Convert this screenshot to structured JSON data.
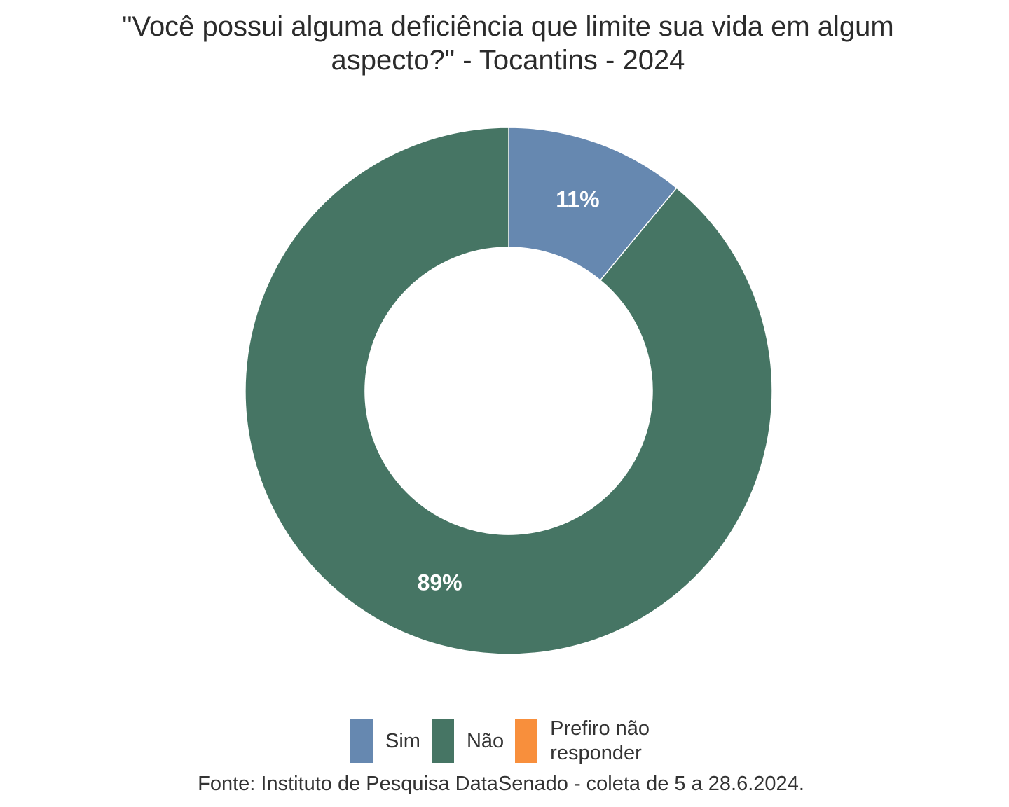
{
  "title_line1": "\"Você possui alguma deficiência que limite sua vida em algum",
  "title_line2": "aspecto?\" - Tocantins - 2024",
  "source": "Fonte: Instituto de Pesquisa DataSenado - coleta de 5 a 28.6.2024.",
  "colors": {
    "sim": "#6688b0",
    "nao": "#467564",
    "prefiro": "#f88f3c"
  },
  "legend": [
    {
      "label": "Sim",
      "color": "#6688b0"
    },
    {
      "label": "Não",
      "color": "#467564"
    },
    {
      "label": "Prefiro não\nresponder",
      "color": "#f88f3c"
    }
  ],
  "chart_data": {
    "type": "pie",
    "title": "\"Você possui alguma deficiência que limite sua vida em algum aspecto?\" - Tocantins - 2024",
    "categories": [
      "Sim",
      "Não",
      "Prefiro não responder"
    ],
    "values": [
      11,
      89,
      0
    ],
    "value_labels": [
      "11%",
      "89%",
      ""
    ],
    "colors": [
      "#6688b0",
      "#467564",
      "#f88f3c"
    ],
    "unit": "%",
    "donut": true,
    "legend_position": "bottom"
  }
}
